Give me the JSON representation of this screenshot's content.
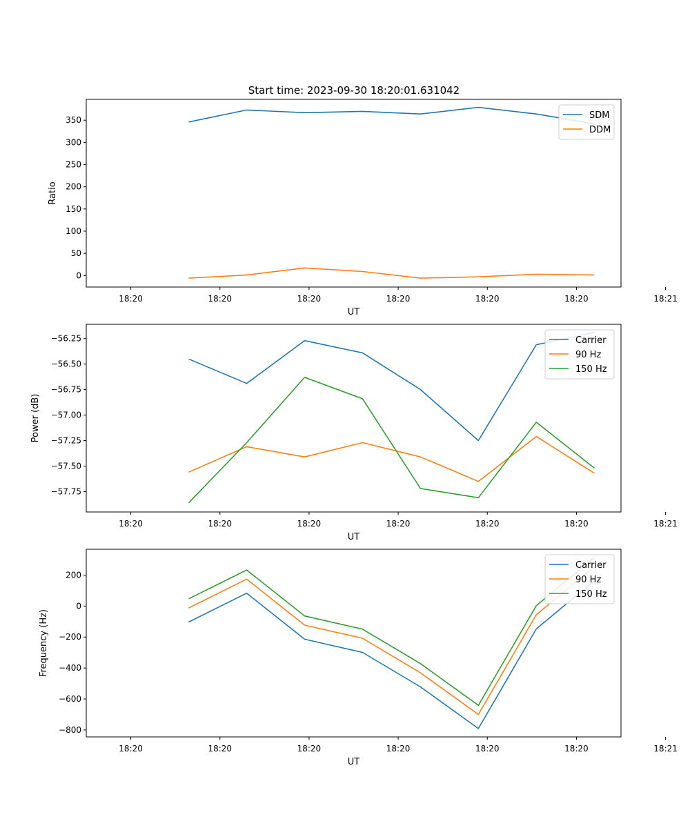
{
  "figure_title": "Start time: 2023-09-30 18:20:01.631042",
  "colors": {
    "c0": "#1f77b4",
    "c1": "#ff7f0e",
    "c2": "#2ca02c"
  },
  "chart_data": [
    {
      "type": "line",
      "title": "Start time: 2023-09-30 18:20:01.631042",
      "xlabel": "UT",
      "ylabel": "Ratio",
      "x": [
        0.65,
        1.3,
        1.95,
        2.6,
        3.25,
        3.9,
        4.55,
        5.2
      ],
      "xlim": [
        -0.5,
        5.5
      ],
      "xticks": [
        0,
        1,
        2,
        3,
        4,
        5,
        6
      ],
      "xtick_labels": [
        "18:20",
        "18:20",
        "18:20",
        "18:20",
        "18:20",
        "18:20",
        "18:21"
      ],
      "ylim": [
        -26,
        397
      ],
      "yticks": [
        0,
        50,
        100,
        150,
        200,
        250,
        300,
        350
      ],
      "ytick_labels": [
        "0",
        "50",
        "100",
        "150",
        "200",
        "250",
        "300",
        "350"
      ],
      "legend_position": "top-right",
      "series": [
        {
          "name": "SDM",
          "color": "#1f77b4",
          "values": [
            346,
            373,
            367,
            370,
            364,
            379,
            364,
            342
          ]
        },
        {
          "name": "DDM",
          "color": "#ff7f0e",
          "values": [
            -6,
            1,
            17,
            9,
            -6,
            -3,
            3,
            1
          ]
        }
      ]
    },
    {
      "type": "line",
      "title": "",
      "xlabel": "UT",
      "ylabel": "Power (dB)",
      "x": [
        0.65,
        1.3,
        1.95,
        2.6,
        3.25,
        3.9,
        4.55,
        5.2
      ],
      "xlim": [
        -0.5,
        5.5
      ],
      "xticks": [
        0,
        1,
        2,
        3,
        4,
        5,
        6
      ],
      "xtick_labels": [
        "18:20",
        "18:20",
        "18:20",
        "18:20",
        "18:20",
        "18:20",
        "18:21"
      ],
      "ylim": [
        -57.95,
        -56.11
      ],
      "yticks": [
        -57.75,
        -57.5,
        -57.25,
        -57.0,
        -56.75,
        -56.5,
        -56.25
      ],
      "ytick_labels": [
        "−57.75",
        "−57.50",
        "−57.25",
        "−57.00",
        "−56.75",
        "−56.50",
        "−56.25"
      ],
      "legend_position": "top-right",
      "series": [
        {
          "name": "Carrier",
          "color": "#1f77b4",
          "values": [
            -56.45,
            -56.69,
            -56.27,
            -56.39,
            -56.75,
            -57.25,
            -56.31,
            -56.19
          ]
        },
        {
          "name": "90 Hz",
          "color": "#ff7f0e",
          "values": [
            -57.56,
            -57.31,
            -57.41,
            -57.27,
            -57.41,
            -57.65,
            -57.21,
            -57.57
          ]
        },
        {
          "name": "150 Hz",
          "color": "#2ca02c",
          "values": [
            -57.86,
            -57.27,
            -56.63,
            -56.84,
            -57.72,
            -57.81,
            -57.07,
            -57.52
          ]
        }
      ]
    },
    {
      "type": "line",
      "title": "",
      "xlabel": "UT",
      "ylabel": "Frequency (Hz)",
      "x": [
        0.65,
        1.3,
        1.95,
        2.6,
        3.25,
        3.9,
        4.55,
        5.2
      ],
      "xlim": [
        -0.5,
        5.5
      ],
      "xticks": [
        0,
        1,
        2,
        3,
        4,
        5,
        6
      ],
      "xtick_labels": [
        "18:20",
        "18:20",
        "18:20",
        "18:20",
        "18:20",
        "18:20",
        "18:21"
      ],
      "ylim": [
        -845,
        367
      ],
      "yticks": [
        -800,
        -600,
        -400,
        -200,
        0,
        200
      ],
      "ytick_labels": [
        "−800",
        "−600",
        "−400",
        "−200",
        "0",
        "200"
      ],
      "legend_position": "top-right",
      "series": [
        {
          "name": "Carrier",
          "color": "#1f77b4",
          "values": [
            -103,
            83,
            -214,
            -299,
            -522,
            -791,
            -147,
            164
          ]
        },
        {
          "name": "90 Hz",
          "color": "#ff7f0e",
          "values": [
            -12,
            174,
            -123,
            -208,
            -431,
            -700,
            -56,
            255
          ]
        },
        {
          "name": "150 Hz",
          "color": "#2ca02c",
          "values": [
            47,
            233,
            -64,
            -149,
            -372,
            -641,
            3,
            314
          ]
        }
      ]
    }
  ]
}
